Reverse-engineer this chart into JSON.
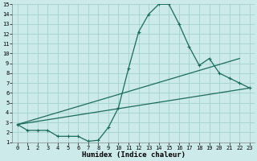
{
  "bg_color": "#cdeaea",
  "grid_color": "#a8d4d4",
  "line_color": "#1a6b5a",
  "line1_x": [
    0,
    1,
    2,
    3,
    4,
    5,
    6,
    7,
    8,
    9,
    10,
    11,
    12,
    13,
    14,
    15,
    16,
    17,
    18,
    19,
    20,
    21,
    22,
    23
  ],
  "line1_y": [
    2.8,
    2.2,
    2.2,
    2.2,
    1.6,
    1.6,
    1.6,
    1.1,
    1.2,
    2.5,
    4.5,
    8.5,
    12.2,
    14.0,
    15.0,
    15.0,
    13.0,
    10.7,
    8.8,
    9.5,
    8.0,
    7.5,
    7.0,
    6.5
  ],
  "line2_x": [
    0,
    22
  ],
  "line2_y": [
    2.8,
    9.5
  ],
  "line3_x": [
    0,
    23
  ],
  "line3_y": [
    2.8,
    6.5
  ],
  "xlim": [
    -0.5,
    23.5
  ],
  "ylim": [
    1,
    15
  ],
  "xticks": [
    0,
    1,
    2,
    3,
    4,
    5,
    6,
    7,
    8,
    9,
    10,
    11,
    12,
    13,
    14,
    15,
    16,
    17,
    18,
    19,
    20,
    21,
    22,
    23
  ],
  "yticks": [
    1,
    2,
    3,
    4,
    5,
    6,
    7,
    8,
    9,
    10,
    11,
    12,
    13,
    14,
    15
  ],
  "xlabel": "Humidex (Indice chaleur)",
  "xlabel_fontsize": 6.5,
  "tick_fontsize": 5.0,
  "figsize": [
    3.2,
    2.0
  ],
  "dpi": 100
}
